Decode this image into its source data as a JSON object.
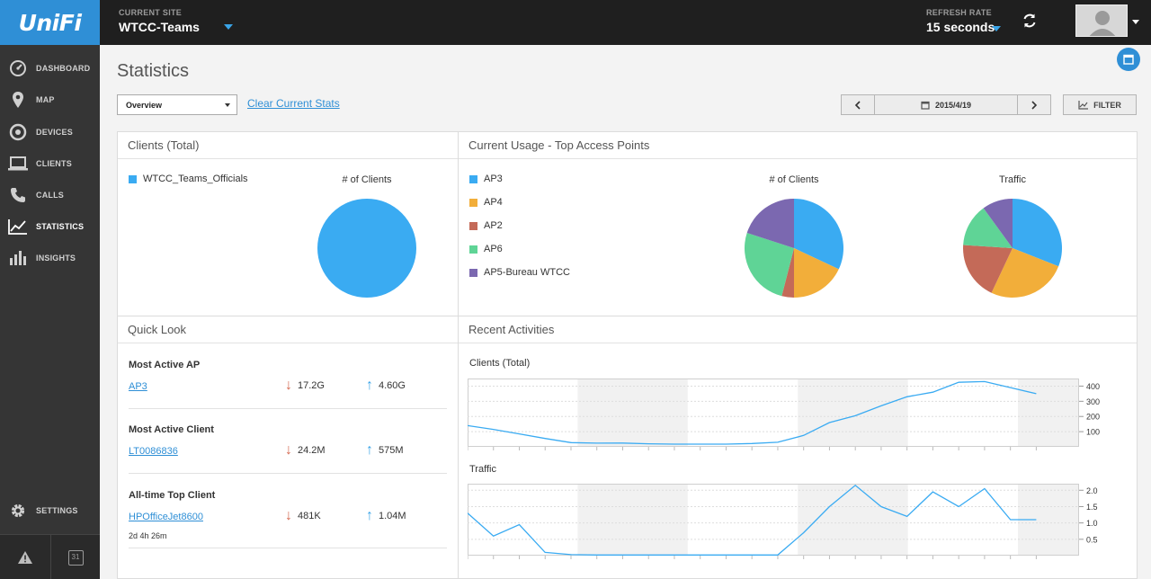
{
  "app": {
    "logo_text": "UniFi"
  },
  "header": {
    "site_label": "CURRENT SITE",
    "site_value": "WTCC-Teams",
    "refresh_label": "REFRESH RATE",
    "refresh_value": "15 seconds"
  },
  "sidebar": {
    "items": [
      {
        "label": "DASHBOARD",
        "icon": "dashboard-icon"
      },
      {
        "label": "MAP",
        "icon": "map-pin-icon"
      },
      {
        "label": "DEVICES",
        "icon": "devices-icon"
      },
      {
        "label": "CLIENTS",
        "icon": "laptop-icon"
      },
      {
        "label": "CALLS",
        "icon": "phone-icon"
      },
      {
        "label": "STATISTICS",
        "icon": "line-chart-icon"
      },
      {
        "label": "INSIGHTS",
        "icon": "bar-chart-icon"
      }
    ],
    "settings_label": "SETTINGS",
    "calendar_badge": "31"
  },
  "page": {
    "title": "Statistics",
    "select_value": "Overview",
    "clear_link": "Clear Current Stats",
    "date": "2015/4/19",
    "filter_label": "FILTER"
  },
  "clients_total": {
    "heading": "Clients (Total)",
    "legend": [
      {
        "name": "WTCC_Teams_Officials",
        "color": "#3aabf2"
      }
    ],
    "chart_title": "# of Clients"
  },
  "top_ap": {
    "heading": "Current Usage - Top Access Points",
    "clients_title": "# of Clients",
    "traffic_title": "Traffic",
    "legend": [
      {
        "name": "AP3",
        "color": "#3aabf2"
      },
      {
        "name": "AP4",
        "color": "#f2ae3a"
      },
      {
        "name": "AP2",
        "color": "#c46a58"
      },
      {
        "name": "AP6",
        "color": "#5fd496"
      },
      {
        "name": "AP5-Bureau WTCC",
        "color": "#7b68b0"
      }
    ]
  },
  "quick_look": {
    "heading": "Quick Look",
    "sections": [
      {
        "title": "Most Active AP",
        "link": "AP3",
        "down": "17.2G",
        "up": "4.60G"
      },
      {
        "title": "Most Active Client",
        "link": "LT0086836",
        "down": "24.2M",
        "up": "575M"
      },
      {
        "title": "All-time Top Client",
        "link": "HPOfficeJet8600",
        "down": "481K",
        "up": "1.04M",
        "sub": "2d 4h 26m"
      }
    ]
  },
  "recent": {
    "heading": "Recent Activities",
    "clients_title": "Clients (Total)",
    "traffic_title": "Traffic"
  },
  "chart_data": [
    {
      "type": "pie",
      "title": "# of Clients",
      "categories": [
        "WTCC_Teams_Officials"
      ],
      "values": [
        100
      ],
      "colors": [
        "#3aabf2"
      ]
    },
    {
      "type": "pie",
      "title": "# of Clients",
      "categories": [
        "AP3",
        "AP4",
        "AP2",
        "AP6",
        "AP5-Bureau WTCC"
      ],
      "values": [
        32,
        18,
        4,
        26,
        20
      ],
      "colors": [
        "#3aabf2",
        "#f2ae3a",
        "#c46a58",
        "#5fd496",
        "#7b68b0"
      ]
    },
    {
      "type": "pie",
      "title": "Traffic",
      "categories": [
        "AP3",
        "AP4",
        "AP2",
        "AP6",
        "AP5-Bureau WTCC"
      ],
      "values": [
        31,
        26,
        19,
        14,
        10
      ],
      "colors": [
        "#3aabf2",
        "#f2ae3a",
        "#c46a58",
        "#5fd496",
        "#7b68b0"
      ]
    },
    {
      "type": "line",
      "title": "Clients (Total)",
      "ylim": [
        0,
        450
      ],
      "yticks": [
        100,
        200,
        300,
        400
      ],
      "values": [
        140,
        115,
        85,
        55,
        28,
        24,
        25,
        20,
        18,
        18,
        18,
        22,
        30,
        75,
        160,
        205,
        270,
        330,
        360,
        425,
        430,
        390,
        350
      ],
      "color": "#3aabf2"
    },
    {
      "type": "line",
      "title": "Traffic",
      "ylim": [
        0,
        2.2
      ],
      "yticks": [
        0.5,
        1.0,
        1.5,
        2.0
      ],
      "ytick_labels": [
        "0.5",
        "1.0",
        "1.5",
        "2.0"
      ],
      "values": [
        1.3,
        0.6,
        0.95,
        0.1,
        0.03,
        0.02,
        0.02,
        0.02,
        0.02,
        0.02,
        0.02,
        0.02,
        0.02,
        0.7,
        1.5,
        2.15,
        1.5,
        1.2,
        1.95,
        1.5,
        2.05,
        1.1,
        1.1
      ],
      "color": "#3aabf2"
    }
  ]
}
